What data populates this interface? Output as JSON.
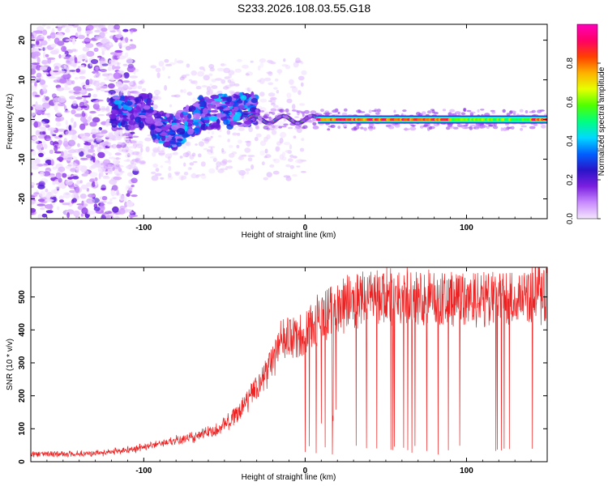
{
  "title": "S233.2026.108.03.55.G18",
  "chart_data": [
    {
      "type": "heatmap",
      "xlabel": "Height of straight line (km)",
      "ylabel": "Frequency (Hz)",
      "xlim": [
        -170,
        150
      ],
      "ylim": [
        -25,
        24
      ],
      "xticks": [
        -100,
        0,
        100
      ],
      "yticks": [
        -20,
        -10,
        0,
        10,
        20
      ],
      "colorbar": {
        "label": "Normalized spectral amplitude",
        "range": [
          0,
          1
        ],
        "ticks": [
          "0.0",
          "0.2",
          "0.4",
          "0.6",
          "0.8"
        ],
        "colors": [
          "#f4e6ff",
          "#c98bff",
          "#7b1fe0",
          "#2a14c8",
          "#0060ff",
          "#00d9ff",
          "#00ff80",
          "#50ff00",
          "#e6ff00",
          "#ffb000",
          "#ff4000",
          "#ff0066",
          "#ff00bb"
        ]
      },
      "features": [
        {
          "kind": "scattered_noise",
          "x_range": [
            -170,
            -120
          ],
          "y_range": [
            -25,
            24
          ],
          "amplitude": 0.1
        },
        {
          "kind": "dispersed_signal",
          "x_range": [
            -120,
            -30
          ],
          "y_range": [
            -6,
            7
          ],
          "amplitude": 0.2
        },
        {
          "kind": "tone",
          "x_range": [
            -30,
            150
          ],
          "y": 0,
          "amplitude": 0.85
        }
      ]
    },
    {
      "type": "line",
      "xlabel": "Height of straight line (km)",
      "ylabel": "SNR (10 * v/v)",
      "xlim": [
        -170,
        150
      ],
      "ylim": [
        0,
        590
      ],
      "xticks": [
        -100,
        0,
        100
      ],
      "yticks": [
        0,
        100,
        200,
        300,
        400,
        500
      ],
      "color": "#ee2222",
      "envelope": [
        [
          -170,
          22
        ],
        [
          -130,
          25
        ],
        [
          -110,
          35
        ],
        [
          -90,
          55
        ],
        [
          -70,
          75
        ],
        [
          -55,
          95
        ],
        [
          -45,
          130
        ],
        [
          -35,
          190
        ],
        [
          -25,
          260
        ],
        [
          -20,
          300
        ],
        [
          -15,
          360
        ],
        [
          -10,
          380
        ],
        [
          -5,
          370
        ],
        [
          0,
          380
        ],
        [
          5,
          420
        ],
        [
          10,
          440
        ],
        [
          20,
          470
        ],
        [
          30,
          490
        ],
        [
          40,
          500
        ],
        [
          60,
          505
        ],
        [
          80,
          500
        ],
        [
          100,
          490
        ],
        [
          120,
          500
        ],
        [
          140,
          505
        ],
        [
          150,
          505
        ]
      ],
      "dropouts": {
        "x_range": [
          0,
          150
        ],
        "min_value": 20
      }
    }
  ]
}
